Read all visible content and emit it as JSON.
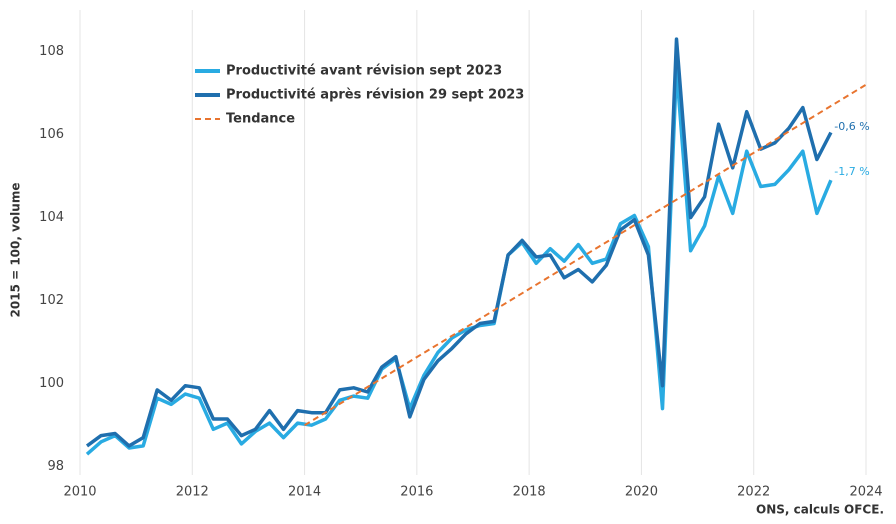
{
  "chart_data": {
    "type": "line",
    "y_label": "2015 = 100, volume",
    "source": "ONS, calculs OFCE.",
    "xlim": [
      2010,
      2024
    ],
    "xticks": [
      2010,
      2012,
      2014,
      2016,
      2018,
      2020,
      2022,
      2024
    ],
    "ylim": [
      97.8,
      109
    ],
    "yticks": [
      98,
      100,
      102,
      104,
      106,
      108
    ],
    "grid": "x",
    "x": [
      2010.125,
      2010.375,
      2010.625,
      2010.875,
      2011.125,
      2011.375,
      2011.625,
      2011.875,
      2012.125,
      2012.375,
      2012.625,
      2012.875,
      2013.125,
      2013.375,
      2013.625,
      2013.875,
      2014.125,
      2014.375,
      2014.625,
      2014.875,
      2015.125,
      2015.375,
      2015.625,
      2015.875,
      2016.125,
      2016.375,
      2016.625,
      2016.875,
      2017.125,
      2017.375,
      2017.625,
      2017.875,
      2018.125,
      2018.375,
      2018.625,
      2018.875,
      2019.125,
      2019.375,
      2019.625,
      2019.875,
      2020.125,
      2020.375,
      2020.625,
      2020.875,
      2021.125,
      2021.375,
      2021.625,
      2021.875,
      2022.125,
      2022.375,
      2022.625,
      2022.875,
      2023.125,
      2023.375
    ],
    "series": [
      {
        "name": "Productivité avant révision sept 2023",
        "color": "#29abe2",
        "values": [
          98.3,
          98.6,
          98.75,
          98.45,
          98.5,
          99.65,
          99.5,
          99.75,
          99.65,
          98.9,
          99.05,
          98.55,
          98.85,
          99.05,
          98.7,
          99.05,
          99.0,
          99.15,
          99.6,
          99.7,
          99.65,
          100.35,
          100.6,
          99.4,
          100.2,
          100.75,
          101.1,
          101.3,
          101.4,
          101.45,
          103.1,
          103.4,
          102.9,
          103.25,
          102.95,
          103.35,
          102.9,
          103.0,
          103.85,
          104.05,
          103.3,
          99.4,
          107.6,
          103.2,
          103.8,
          105.0,
          104.1,
          105.6,
          104.75,
          104.8,
          105.15,
          105.6,
          104.1,
          104.9
        ]
      },
      {
        "name": "Productivité après révision 29 sept 2023",
        "color": "#1f6fae",
        "values": [
          98.5,
          98.75,
          98.8,
          98.5,
          98.7,
          99.85,
          99.6,
          99.95,
          99.9,
          99.15,
          99.15,
          98.75,
          98.9,
          99.35,
          98.9,
          99.35,
          99.3,
          99.3,
          99.85,
          99.9,
          99.8,
          100.4,
          100.65,
          99.2,
          100.1,
          100.55,
          100.85,
          101.2,
          101.45,
          101.5,
          103.1,
          103.45,
          103.05,
          103.1,
          102.55,
          102.75,
          102.45,
          102.85,
          103.7,
          103.95,
          103.1,
          99.95,
          108.3,
          104.0,
          104.5,
          106.25,
          105.2,
          106.55,
          105.65,
          105.8,
          106.15,
          106.65,
          105.4,
          106.05
        ]
      },
      {
        "name": "Tendance",
        "color": "#e8742f",
        "dashed": true,
        "x": [
          2014,
          2024
        ],
        "values": [
          99.0,
          107.2
        ]
      }
    ],
    "annotations": [
      {
        "text": "-0,6 %",
        "color": "#1f6fae"
      },
      {
        "text": "-1,7 %",
        "color": "#29abe2"
      }
    ]
  }
}
